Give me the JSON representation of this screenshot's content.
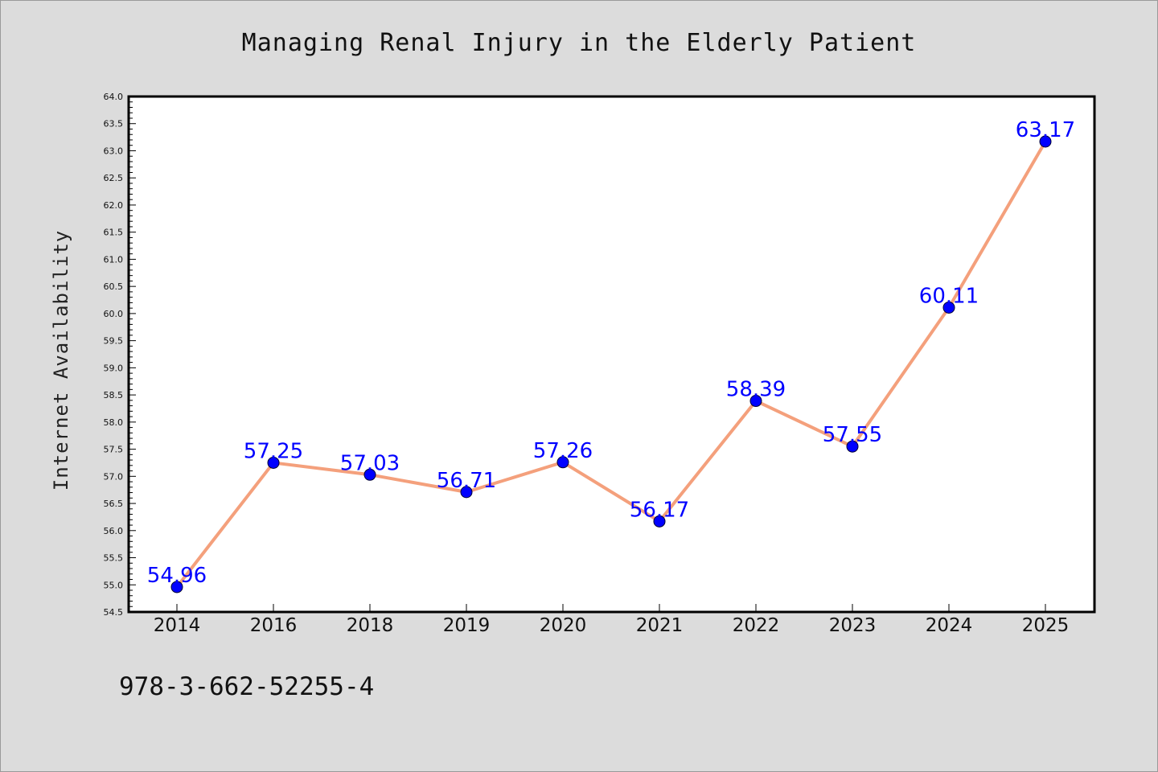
{
  "chart_data": {
    "type": "line",
    "title": "Managing Renal Injury in the Elderly Patient",
    "xlabel": "",
    "ylabel": "Internet Availability",
    "categories": [
      "2014",
      "2016",
      "2018",
      "2019",
      "2020",
      "2021",
      "2022",
      "2023",
      "2024",
      "2025"
    ],
    "values": [
      54.96,
      57.25,
      57.03,
      56.71,
      57.26,
      56.17,
      58.39,
      57.55,
      60.11,
      63.17
    ],
    "data_labels": [
      "54.96",
      "57.25",
      "57.03",
      "56.71",
      "57.26",
      "56.17",
      "58.39",
      "57.55",
      "60.11",
      "63.17"
    ],
    "ylim": [
      54.5,
      64.0
    ],
    "yticks": [
      "54.5",
      "55.0",
      "55.5",
      "56.0",
      "56.5",
      "57.0",
      "57.5",
      "58.0",
      "58.5",
      "59.0",
      "59.5",
      "60.0",
      "60.5",
      "61.0",
      "61.5",
      "62.0",
      "62.5",
      "63.0",
      "63.5",
      "64.0"
    ],
    "grid": false,
    "line_color": "#f4a07c",
    "marker_color": "#0000ff",
    "label_color": "#0000ff"
  },
  "footer": {
    "isbn": "978-3-662-52255-4"
  }
}
